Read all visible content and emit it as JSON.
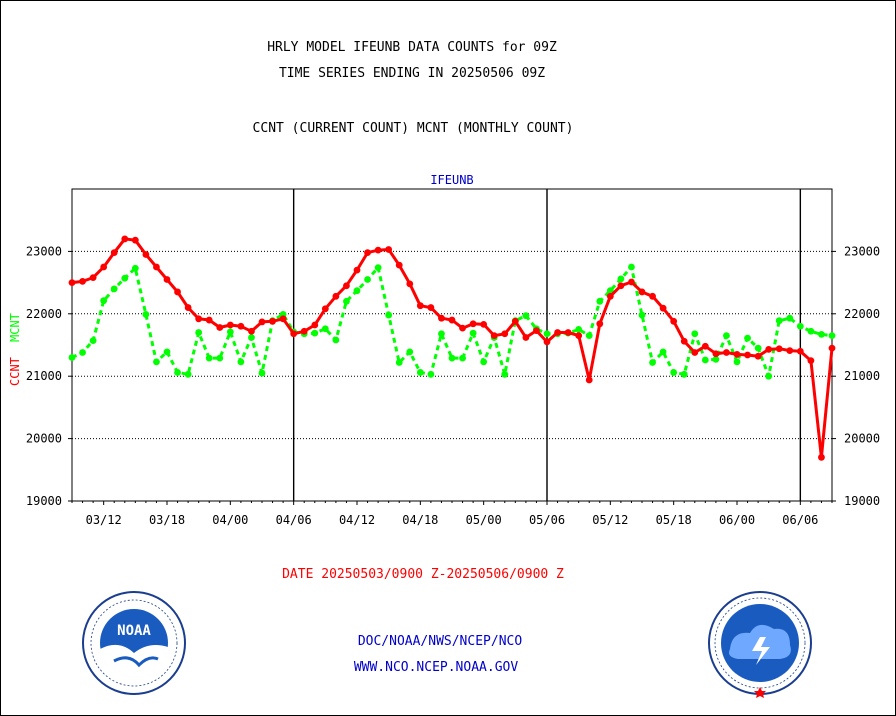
{
  "header": {
    "line1": "HRLY MODEL IFEUNB DATA COUNTS for 09Z",
    "line2": "TIME SERIES ENDING IN 20250506 09Z",
    "line3": "CCNT (CURRENT COUNT) MCNT (MONTHLY COUNT)"
  },
  "footer": {
    "date_range": "DATE 20250503/0900 Z-20250506/0900 Z",
    "org": "DOC/NOAA/NWS/NCEP/NCO",
    "url": "WWW.NCO.NCEP.NOAA.GOV"
  },
  "logos": {
    "left": {
      "icon": "noaa-logo",
      "text": "NOAA"
    },
    "right": {
      "icon": "nws-logo"
    }
  },
  "colors": {
    "ccnt": "#ff0000",
    "mcnt": "#00ff00",
    "title": "#0000cc",
    "axis": "#000000",
    "footer_date": "#ff0000",
    "footer_links": "#0000cc"
  },
  "chart_data": {
    "type": "line",
    "title": "IFEUNB",
    "ylabel_left": [
      "CCNT",
      "MCNT"
    ],
    "ylim": [
      19000,
      24000
    ],
    "yticks": [
      19000,
      20000,
      21000,
      22000,
      23000
    ],
    "ytick_labels": [
      "19000",
      "20000",
      "21000",
      "22000",
      "23000"
    ],
    "grid_y": [
      20000,
      21000,
      22000,
      23000
    ],
    "xlim": [
      0,
      72
    ],
    "x_ticks": [
      {
        "x": 3,
        "label": "03/12"
      },
      {
        "x": 9,
        "label": "03/18"
      },
      {
        "x": 15,
        "label": "04/00"
      },
      {
        "x": 21,
        "label": "04/06"
      },
      {
        "x": 27,
        "label": "04/12"
      },
      {
        "x": 33,
        "label": "04/18"
      },
      {
        "x": 39,
        "label": "05/00"
      },
      {
        "x": 45,
        "label": "05/06"
      },
      {
        "x": 51,
        "label": "05/12"
      },
      {
        "x": 57,
        "label": "05/18"
      },
      {
        "x": 63,
        "label": "06/00"
      },
      {
        "x": 69,
        "label": "06/06"
      }
    ],
    "day_separators": [
      21,
      45,
      69
    ],
    "series": [
      {
        "name": "CCNT",
        "style": "solid",
        "x": [
          0,
          1,
          2,
          3,
          4,
          5,
          6,
          7,
          8,
          9,
          10,
          11,
          12,
          13,
          14,
          15,
          16,
          17,
          18,
          19,
          20,
          21,
          22,
          23,
          24,
          25,
          26,
          27,
          28,
          29,
          30,
          31,
          32,
          33,
          34,
          35,
          36,
          37,
          38,
          39,
          40,
          41,
          42,
          43,
          44,
          45,
          46,
          47,
          48,
          49,
          50,
          51,
          52,
          53,
          54,
          55,
          56,
          57,
          58,
          59,
          60,
          61,
          62,
          63,
          64,
          65,
          66,
          67,
          68,
          69,
          70,
          71,
          72
        ],
        "values": [
          22500,
          22520,
          22580,
          22750,
          22980,
          23200,
          23180,
          22950,
          22750,
          22550,
          22350,
          22100,
          21920,
          21900,
          21780,
          21820,
          21800,
          21720,
          21870,
          21880,
          21920,
          21680,
          21720,
          21820,
          22080,
          22280,
          22450,
          22700,
          22980,
          23020,
          23030,
          22780,
          22480,
          22130,
          22100,
          21930,
          21900,
          21770,
          21840,
          21830,
          21650,
          21680,
          21880,
          21620,
          21730,
          21550,
          21700,
          21700,
          21650,
          20940,
          21840,
          22280,
          22450,
          22510,
          22350,
          22280,
          22090,
          21880,
          21560,
          21380,
          21480,
          21360,
          21380,
          21350,
          21340,
          21320,
          21430,
          21440,
          21410,
          21400,
          21250,
          19700,
          21450
        ]
      },
      {
        "name": "MCNT",
        "style": "dashed",
        "x": [
          0,
          1,
          2,
          3,
          4,
          5,
          6,
          7,
          8,
          9,
          10,
          11,
          12,
          13,
          14,
          15,
          16,
          17,
          18,
          19,
          20,
          21,
          22,
          23,
          24,
          25,
          26,
          27,
          28,
          29,
          30,
          31,
          32,
          33,
          34,
          35,
          36,
          37,
          38,
          39,
          40,
          41,
          42,
          43,
          44,
          45,
          46,
          47,
          48,
          49,
          50,
          51,
          52,
          53,
          54,
          55,
          56,
          57,
          58,
          59,
          60,
          61,
          62,
          63,
          64,
          65,
          66,
          67,
          68,
          69,
          70,
          71,
          72
        ],
        "values": [
          21300,
          21380,
          21570,
          22210,
          22400,
          22570,
          22730,
          21990,
          21230,
          21390,
          21060,
          21030,
          21700,
          21290,
          21290,
          21710,
          21230,
          21620,
          21050,
          21890,
          21990,
          21710,
          21680,
          21690,
          21760,
          21580,
          22200,
          22370,
          22550,
          22740,
          21980,
          21220,
          21390,
          21060,
          21030,
          21680,
          21290,
          21290,
          21690,
          21230,
          21620,
          21030,
          21890,
          21970,
          21760,
          21680,
          21680,
          21690,
          21750,
          21650,
          22200,
          22370,
          22560,
          22750,
          21980,
          21220,
          21390,
          21060,
          21030,
          21680,
          21260,
          21270,
          21650,
          21230,
          21610,
          21450,
          21000,
          21890,
          21930,
          21800,
          21720,
          21670,
          21650
        ]
      }
    ],
    "right_axis": {
      "yticks": [
        19000,
        20000,
        21000,
        22000,
        23000
      ],
      "ytick_labels": [
        "19000",
        "20000",
        "21000",
        "22000",
        "23000"
      ]
    }
  }
}
